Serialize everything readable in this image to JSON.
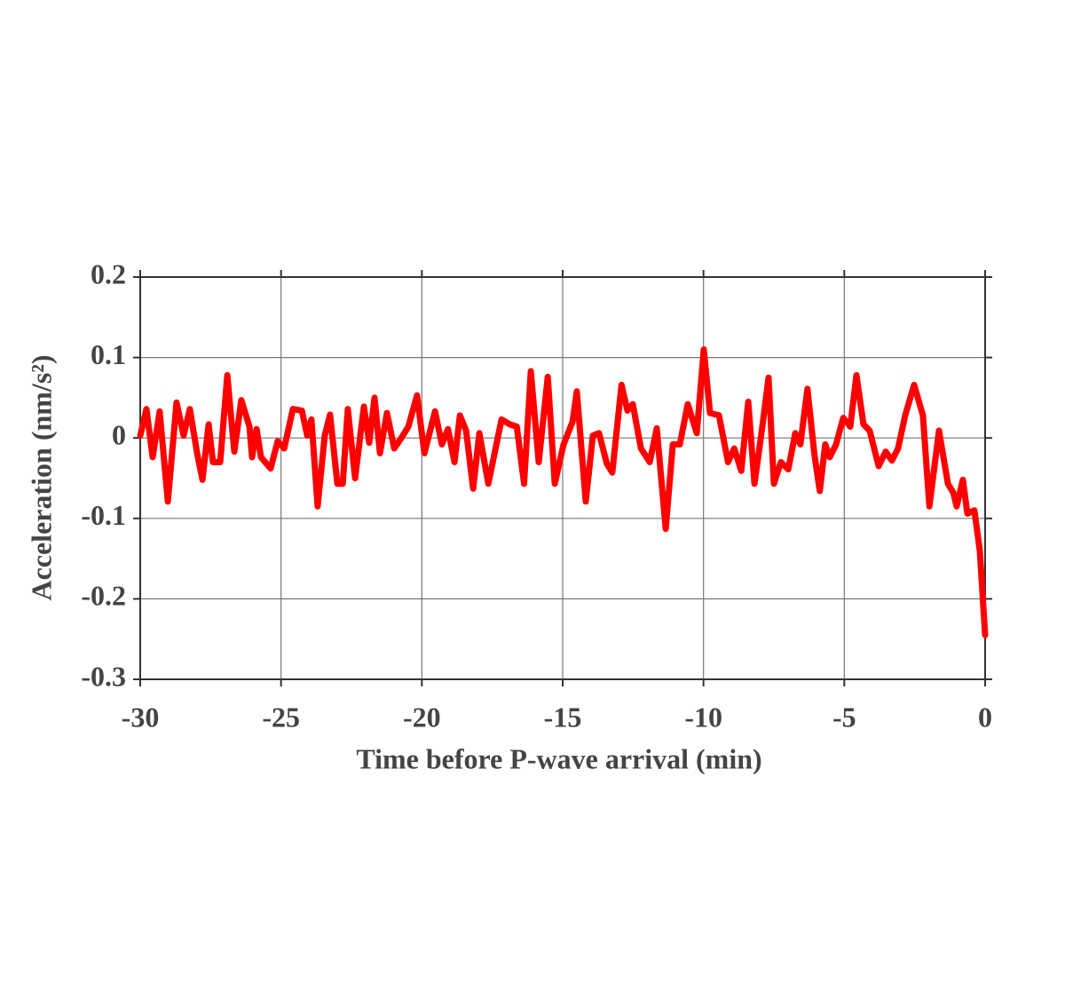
{
  "chart_data": {
    "type": "line",
    "xlabel": "Time before P-wave arrival (min)",
    "ylabel": "Acceleration (nm/s²)",
    "x": [
      -30,
      -29.78,
      -29.56,
      -29.31,
      -29.02,
      -28.71,
      -28.46,
      -28.24,
      -27.98,
      -27.79,
      -27.57,
      -27.42,
      -27.16,
      -26.91,
      -26.66,
      -26.41,
      -26.12,
      -26.03,
      -25.87,
      -25.71,
      -25.37,
      -25.12,
      -24.89,
      -24.58,
      -24.26,
      -24.07,
      -23.92,
      -23.7,
      -23.45,
      -23.26,
      -23.0,
      -22.81,
      -22.63,
      -22.37,
      -22.06,
      -21.87,
      -21.68,
      -21.49,
      -21.24,
      -20.98,
      -20.73,
      -20.48,
      -20.17,
      -19.91,
      -19.53,
      -19.29,
      -19.07,
      -18.84,
      -18.65,
      -18.43,
      -18.18,
      -17.96,
      -17.64,
      -17.17,
      -16.88,
      -16.63,
      -16.37,
      -16.13,
      -15.85,
      -15.53,
      -15.28,
      -14.97,
      -14.65,
      -14.5,
      -14.18,
      -13.93,
      -13.71,
      -13.43,
      -13.24,
      -12.91,
      -12.7,
      -12.51,
      -12.22,
      -11.91,
      -11.66,
      -11.34,
      -11.09,
      -10.84,
      -10.56,
      -10.24,
      -9.99,
      -9.77,
      -9.45,
      -9.13,
      -8.91,
      -8.66,
      -8.41,
      -8.19,
      -7.94,
      -7.69,
      -7.5,
      -7.25,
      -6.99,
      -6.74,
      -6.56,
      -6.31,
      -6.06,
      -5.87,
      -5.68,
      -5.52,
      -5.29,
      -5.04,
      -4.79,
      -4.57,
      -4.32,
      -4.1,
      -3.78,
      -3.53,
      -3.31,
      -3.09,
      -2.84,
      -2.52,
      -2.21,
      -1.98,
      -1.64,
      -1.32,
      -1.13,
      -1.01,
      -0.79,
      -0.63,
      -0.38,
      -0.19,
      0
    ],
    "series": [
      {
        "color": "#ff0000",
        "values": [
          0.003,
          0.036,
          -0.024,
          0.033,
          -0.079,
          0.044,
          0.003,
          0.036,
          -0.019,
          -0.052,
          0.017,
          -0.03,
          -0.03,
          0.078,
          -0.017,
          0.047,
          0.014,
          -0.024,
          0.011,
          -0.024,
          -0.038,
          -0.004,
          -0.013,
          0.036,
          0.034,
          0.003,
          0.023,
          -0.085,
          0.003,
          0.029,
          -0.057,
          -0.057,
          0.036,
          -0.05,
          0.039,
          -0.006,
          0.05,
          -0.019,
          0.031,
          -0.013,
          0.0,
          0.014,
          0.053,
          -0.019,
          0.033,
          -0.008,
          0.011,
          -0.03,
          0.028,
          0.009,
          -0.063,
          0.006,
          -0.057,
          0.023,
          0.017,
          0.014,
          -0.057,
          0.083,
          -0.03,
          0.076,
          -0.057,
          -0.008,
          0.02,
          0.058,
          -0.079,
          0.003,
          0.006,
          -0.032,
          -0.043,
          0.066,
          0.034,
          0.042,
          -0.013,
          -0.03,
          0.012,
          -0.113,
          -0.008,
          -0.008,
          0.042,
          0.006,
          0.11,
          0.031,
          0.028,
          -0.03,
          -0.013,
          -0.041,
          0.045,
          -0.057,
          0.006,
          0.075,
          -0.057,
          -0.03,
          -0.039,
          0.006,
          -0.008,
          0.061,
          -0.021,
          -0.066,
          -0.008,
          -0.024,
          -0.008,
          0.025,
          0.014,
          0.078,
          0.017,
          0.009,
          -0.035,
          -0.017,
          -0.028,
          -0.013,
          0.028,
          0.066,
          0.028,
          -0.085,
          0.009,
          -0.057,
          -0.068,
          -0.085,
          -0.052,
          -0.094,
          -0.09,
          -0.14,
          -0.245
        ]
      }
    ],
    "xlim": [
      -30,
      0
    ],
    "xticks": [
      -30,
      -25,
      -20,
      -15,
      -10,
      -5,
      0
    ],
    "ylim": [
      -0.3,
      0.2
    ],
    "yticks": [
      -0.3,
      -0.2,
      -0.1,
      0,
      0.1,
      0.2
    ],
    "grid": true
  }
}
